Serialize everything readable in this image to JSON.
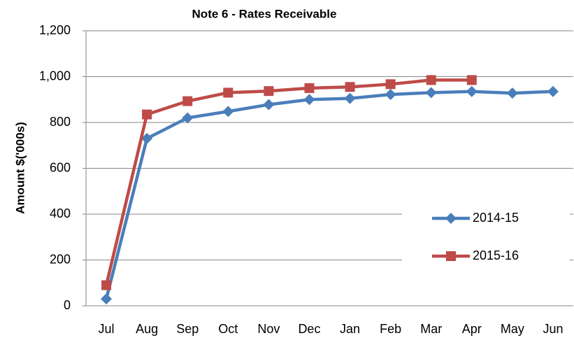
{
  "chart_data": {
    "type": "line",
    "title": "Note 6 - Rates Receivable",
    "y_label": "Amount $('000s)",
    "categories": [
      "Jul",
      "Aug",
      "Sep",
      "Oct",
      "Nov",
      "Dec",
      "Jan",
      "Feb",
      "Mar",
      "Apr",
      "May",
      "Jun"
    ],
    "series": [
      {
        "name": "2014-15",
        "color": "#4a7ebb",
        "marker": "diamond",
        "values": [
          30,
          730,
          820,
          848,
          878,
          900,
          905,
          922,
          930,
          935,
          928,
          935
        ]
      },
      {
        "name": "2015-16",
        "color": "#be4b48",
        "marker": "square",
        "values": [
          90,
          835,
          893,
          930,
          937,
          950,
          955,
          967,
          985,
          985,
          null,
          null
        ]
      }
    ],
    "ylim": [
      0,
      1200
    ],
    "yticks": [
      0,
      200,
      400,
      600,
      800,
      {
        "value": 1000,
        "label": "1,000"
      },
      {
        "value": 1200,
        "label": "1,200"
      }
    ],
    "grid": true,
    "legend": "right"
  }
}
